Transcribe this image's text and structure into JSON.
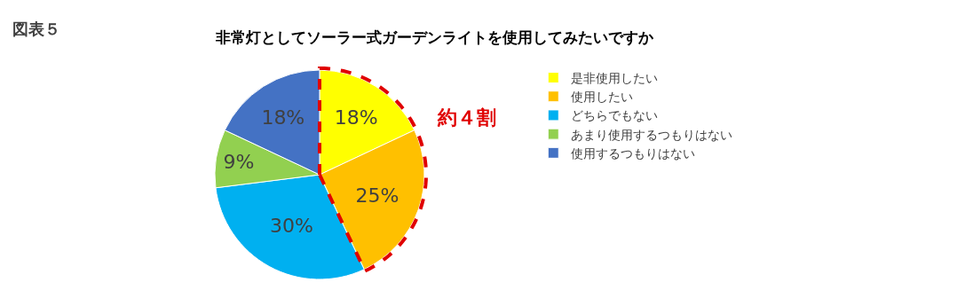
{
  "chart_data": {
    "type": "pie",
    "title": "非常灯としてソーラー式ガーデンライトを使用してみたいですか",
    "categories": [
      "是非使用したい",
      "使用したい",
      "どちらでもない",
      "あまり使用するつもりはない",
      "使用するつもりはない"
    ],
    "values": [
      18,
      25,
      30,
      9,
      18
    ],
    "colors": [
      "#ffff00",
      "#ffc000",
      "#00b0f0",
      "#92d050",
      "#4472c4"
    ],
    "value_labels": [
      "18%",
      "25%",
      "30%",
      "9%",
      "18%"
    ],
    "legend": "right",
    "annotations": [
      "図表５",
      "約４割"
    ]
  }
}
